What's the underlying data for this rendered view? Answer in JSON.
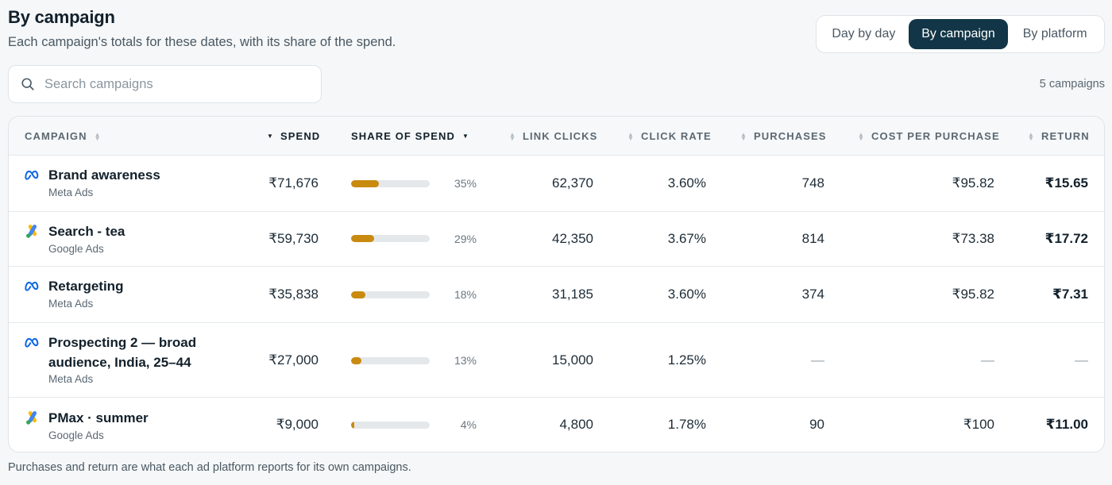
{
  "header": {
    "title": "By campaign",
    "subtitle": "Each campaign's totals for these dates, with its share of the spend."
  },
  "view_toggle": {
    "options": [
      "Day by day",
      "By campaign",
      "By platform"
    ],
    "selected": "By campaign"
  },
  "search": {
    "placeholder": "Search campaigns",
    "value": ""
  },
  "count_label": "5 campaigns",
  "table": {
    "columns": [
      "CAMPAIGN",
      "SPEND",
      "SHARE OF SPEND",
      "LINK CLICKS",
      "CLICK RATE",
      "PURCHASES",
      "COST PER PURCHASE",
      "RETURN"
    ],
    "rows": [
      {
        "name": "Brand awareness",
        "platform": "Meta Ads",
        "icon": "meta-icon",
        "spend": "₹71,676",
        "share": "35%",
        "share_fraction": 0.35,
        "link_clicks": "62,370",
        "click_rate": "3.60%",
        "purchases": "748",
        "cost_per_purchase": "₹95.82",
        "return": "₹15.65"
      },
      {
        "name": "Search - tea",
        "platform": "Google Ads",
        "icon": "google-ads-icon",
        "spend": "₹59,730",
        "share": "29%",
        "share_fraction": 0.29,
        "link_clicks": "42,350",
        "click_rate": "3.67%",
        "purchases": "814",
        "cost_per_purchase": "₹73.38",
        "return": "₹17.72"
      },
      {
        "name": "Retargeting",
        "platform": "Meta Ads",
        "icon": "meta-icon",
        "spend": "₹35,838",
        "share": "18%",
        "share_fraction": 0.18,
        "link_clicks": "31,185",
        "click_rate": "3.60%",
        "purchases": "374",
        "cost_per_purchase": "₹95.82",
        "return": "₹7.31"
      },
      {
        "name_line1": "Prospecting 2 — broad",
        "name_line2": "audience, India, 25–44",
        "platform": "Meta Ads",
        "icon": "meta-icon",
        "spend": "₹27,000",
        "share": "13%",
        "share_fraction": 0.13,
        "link_clicks": "15,000",
        "click_rate": "1.25%",
        "purchases": "—",
        "cost_per_purchase": "—",
        "return": "—"
      },
      {
        "name": "PMax · summer",
        "platform": "Google Ads",
        "icon": "google-ads-icon",
        "spend": "₹9,000",
        "share": "4%",
        "share_fraction": 0.04,
        "link_clicks": "4,800",
        "click_rate": "1.78%",
        "purchases": "90",
        "cost_per_purchase": "₹100",
        "return": "₹11.00"
      }
    ]
  },
  "footnote": "Purchases and return are what each ad platform reports for its own campaigns.",
  "colors": {
    "accent": "#123647",
    "bar_fill": "#c98a10",
    "bar_track": "#e4e8eb"
  }
}
